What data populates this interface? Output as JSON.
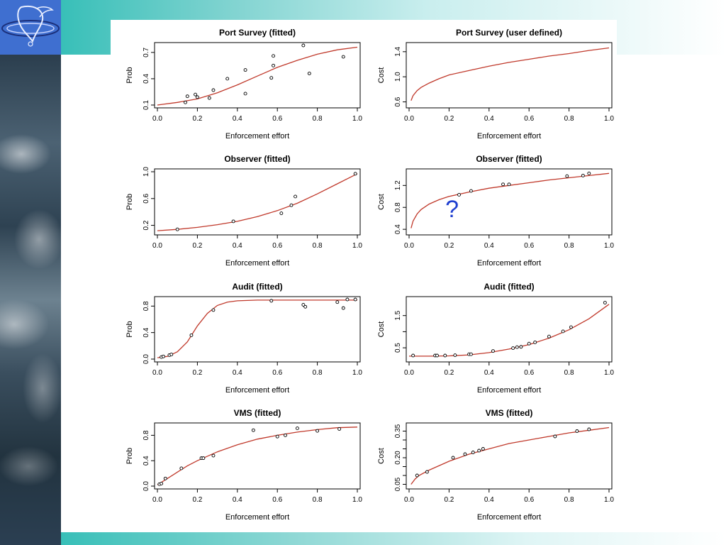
{
  "question_mark": "?",
  "chart_data": [
    {
      "type": "scatter",
      "title": "Port Survey  (fitted)",
      "xlabel": "Enforcement effort",
      "ylabel": "Prob",
      "xlim": [
        0,
        1
      ],
      "ylim": [
        0.1,
        0.78
      ],
      "xticks": [
        0.0,
        0.2,
        0.4,
        0.6,
        0.8,
        1.0
      ],
      "xtick_labels": [
        "0.0",
        "0.2",
        "0.4",
        "0.6",
        "0.8",
        "1.0"
      ],
      "yticks": [
        0.1,
        0.4,
        0.7
      ],
      "ytick_labels": [
        "0.1",
        "0.4",
        "0.7"
      ],
      "points": {
        "x": [
          0.14,
          0.15,
          0.19,
          0.2,
          0.26,
          0.28,
          0.35,
          0.44,
          0.44,
          0.57,
          0.58,
          0.58,
          0.73,
          0.76,
          0.93
        ],
        "y": [
          0.13,
          0.2,
          0.22,
          0.19,
          0.18,
          0.27,
          0.4,
          0.5,
          0.23,
          0.41,
          0.55,
          0.66,
          0.78,
          0.46,
          0.65
        ]
      },
      "curve": {
        "x": [
          0,
          0.1,
          0.2,
          0.3,
          0.4,
          0.5,
          0.6,
          0.7,
          0.8,
          0.9,
          1.0
        ],
        "y": [
          0.1,
          0.13,
          0.17,
          0.24,
          0.33,
          0.43,
          0.53,
          0.61,
          0.68,
          0.73,
          0.76
        ]
      }
    },
    {
      "type": "line",
      "title": "Port Survey  (user defined)",
      "xlabel": "Enforcement effort",
      "ylabel": "Cost",
      "xlim": [
        0,
        1
      ],
      "ylim": [
        0.55,
        1.5
      ],
      "xticks": [
        0.0,
        0.2,
        0.4,
        0.6,
        0.8,
        1.0
      ],
      "xtick_labels": [
        "0.0",
        "0.2",
        "0.4",
        "0.6",
        "0.8",
        "1.0"
      ],
      "yticks": [
        0.6,
        1.0,
        1.4
      ],
      "ytick_labels": [
        "0.6",
        "1.0",
        "1.4"
      ],
      "points": {
        "x": [],
        "y": []
      },
      "curve": {
        "x": [
          0.01,
          0.02,
          0.04,
          0.06,
          0.1,
          0.15,
          0.2,
          0.3,
          0.4,
          0.5,
          0.6,
          0.7,
          0.8,
          0.9,
          1.0
        ],
        "y": [
          0.62,
          0.7,
          0.78,
          0.83,
          0.9,
          0.97,
          1.03,
          1.1,
          1.17,
          1.23,
          1.28,
          1.33,
          1.37,
          1.42,
          1.46
        ]
      }
    },
    {
      "type": "scatter",
      "title": "Observer  (fitted)",
      "xlabel": "Enforcement effort",
      "ylabel": "Prob",
      "xlim": [
        0,
        1
      ],
      "ylim": [
        0.1,
        1.0
      ],
      "xticks": [
        0.0,
        0.2,
        0.4,
        0.6,
        0.8,
        1.0
      ],
      "xtick_labels": [
        "0.0",
        "0.2",
        "0.4",
        "0.6",
        "0.8",
        "1.0"
      ],
      "yticks": [
        0.2,
        0.6,
        1.0
      ],
      "ytick_labels": [
        "0.2",
        "0.6",
        "1.0"
      ],
      "points": {
        "x": [
          0.1,
          0.38,
          0.62,
          0.67,
          0.69,
          0.99
        ],
        "y": [
          0.14,
          0.26,
          0.38,
          0.5,
          0.63,
          0.97
        ]
      },
      "curve": {
        "x": [
          0,
          0.1,
          0.2,
          0.3,
          0.4,
          0.5,
          0.6,
          0.7,
          0.8,
          0.9,
          1.0
        ],
        "y": [
          0.12,
          0.14,
          0.17,
          0.21,
          0.26,
          0.33,
          0.42,
          0.53,
          0.67,
          0.82,
          0.97
        ]
      }
    },
    {
      "type": "scatter",
      "title": "Observer  (fitted)",
      "xlabel": "Enforcement effort",
      "ylabel": "Cost",
      "xlim": [
        0,
        1
      ],
      "ylim": [
        0.35,
        1.45
      ],
      "xticks": [
        0.0,
        0.2,
        0.4,
        0.6,
        0.8,
        1.0
      ],
      "xtick_labels": [
        "0.0",
        "0.2",
        "0.4",
        "0.6",
        "0.8",
        "1.0"
      ],
      "yticks": [
        0.4,
        0.8,
        1.2
      ],
      "ytick_labels": [
        "0.4",
        "0.8",
        "1.2"
      ],
      "points": {
        "x": [
          0.25,
          0.31,
          0.47,
          0.5,
          0.79,
          0.87,
          0.9
        ],
        "y": [
          1.03,
          1.1,
          1.22,
          1.22,
          1.37,
          1.38,
          1.42
        ]
      },
      "curve": {
        "x": [
          0.01,
          0.02,
          0.04,
          0.06,
          0.1,
          0.15,
          0.2,
          0.3,
          0.4,
          0.5,
          0.6,
          0.7,
          0.8,
          0.9,
          1.0
        ],
        "y": [
          0.42,
          0.55,
          0.68,
          0.76,
          0.86,
          0.94,
          1.0,
          1.08,
          1.15,
          1.2,
          1.25,
          1.3,
          1.34,
          1.38,
          1.42
        ]
      }
    },
    {
      "type": "scatter",
      "title": "Audit  (fitted)",
      "xlabel": "Enforcement effort",
      "ylabel": "Prob",
      "xlim": [
        0,
        1
      ],
      "ylim": [
        0,
        0.9
      ],
      "xticks": [
        0.0,
        0.2,
        0.4,
        0.6,
        0.8,
        1.0
      ],
      "xtick_labels": [
        "0.0",
        "0.2",
        "0.4",
        "0.6",
        "0.8",
        "1.0"
      ],
      "yticks": [
        0.0,
        0.4,
        0.8
      ],
      "ytick_labels": [
        "0.0",
        "0.4",
        "0.8"
      ],
      "points": {
        "x": [
          0.02,
          0.03,
          0.06,
          0.07,
          0.17,
          0.28,
          0.57,
          0.73,
          0.74,
          0.9,
          0.93,
          0.95,
          0.99
        ],
        "y": [
          0.03,
          0.04,
          0.06,
          0.07,
          0.36,
          0.74,
          0.88,
          0.82,
          0.79,
          0.86,
          0.77,
          0.9,
          0.9
        ]
      },
      "curve": {
        "x": [
          0,
          0.05,
          0.1,
          0.15,
          0.2,
          0.25,
          0.3,
          0.35,
          0.4,
          0.5,
          0.6,
          0.8,
          1.0
        ],
        "y": [
          0.02,
          0.04,
          0.11,
          0.26,
          0.5,
          0.69,
          0.81,
          0.86,
          0.88,
          0.89,
          0.89,
          0.89,
          0.89
        ]
      }
    },
    {
      "type": "scatter",
      "title": "Audit  (fitted)",
      "xlabel": "Enforcement effort",
      "ylabel": "Cost",
      "xlim": [
        0,
        1
      ],
      "ylim": [
        0.15,
        2.0
      ],
      "xticks": [
        0.0,
        0.2,
        0.4,
        0.6,
        0.8,
        1.0
      ],
      "xtick_labels": [
        "0.0",
        "0.2",
        "0.4",
        "0.6",
        "0.8",
        "1.0"
      ],
      "yticks": [
        0.5,
        1.0,
        1.5
      ],
      "ytick_labels": [
        "0.5",
        "",
        "1.5"
      ],
      "points": {
        "x": [
          0.02,
          0.13,
          0.14,
          0.18,
          0.23,
          0.3,
          0.31,
          0.42,
          0.52,
          0.54,
          0.56,
          0.6,
          0.63,
          0.7,
          0.77,
          0.81,
          0.98
        ],
        "y": [
          0.26,
          0.26,
          0.26,
          0.26,
          0.27,
          0.3,
          0.3,
          0.4,
          0.49,
          0.52,
          0.53,
          0.63,
          0.67,
          0.85,
          1.01,
          1.14,
          1.9
        ]
      },
      "curve": {
        "x": [
          0,
          0.1,
          0.2,
          0.3,
          0.4,
          0.5,
          0.6,
          0.7,
          0.8,
          0.9,
          1.0
        ],
        "y": [
          0.24,
          0.24,
          0.25,
          0.28,
          0.35,
          0.46,
          0.6,
          0.8,
          1.06,
          1.4,
          1.85
        ]
      }
    },
    {
      "type": "scatter",
      "title": "VMS  (fitted)",
      "xlabel": "Enforcement effort",
      "ylabel": "Prob",
      "xlim": [
        0,
        1
      ],
      "ylim": [
        0,
        0.95
      ],
      "xticks": [
        0.0,
        0.2,
        0.4,
        0.6,
        0.8,
        1.0
      ],
      "xtick_labels": [
        "0.0",
        "0.2",
        "0.4",
        "0.6",
        "0.8",
        "1.0"
      ],
      "yticks": [
        0.0,
        0.4,
        0.8
      ],
      "ytick_labels": [
        "0.0",
        "0.4",
        "0.8"
      ],
      "points": {
        "x": [
          0.01,
          0.02,
          0.04,
          0.12,
          0.22,
          0.23,
          0.28,
          0.48,
          0.6,
          0.64,
          0.7,
          0.8,
          0.91
        ],
        "y": [
          0.03,
          0.04,
          0.12,
          0.28,
          0.44,
          0.44,
          0.48,
          0.88,
          0.78,
          0.8,
          0.91,
          0.87,
          0.9
        ]
      },
      "curve": {
        "x": [
          0,
          0.05,
          0.1,
          0.15,
          0.2,
          0.3,
          0.4,
          0.5,
          0.6,
          0.7,
          0.8,
          0.9,
          1.0
        ],
        "y": [
          0.02,
          0.12,
          0.22,
          0.32,
          0.4,
          0.54,
          0.65,
          0.74,
          0.8,
          0.85,
          0.89,
          0.92,
          0.93
        ]
      }
    },
    {
      "type": "scatter",
      "title": "VMS  (fitted)",
      "xlabel": "Enforcement effort",
      "ylabel": "Cost",
      "xlim": [
        0,
        1
      ],
      "ylim": [
        0.04,
        0.38
      ],
      "xticks": [
        0.0,
        0.2,
        0.4,
        0.6,
        0.8,
        1.0
      ],
      "xtick_labels": [
        "0.0",
        "0.2",
        "0.4",
        "0.6",
        "0.8",
        "1.0"
      ],
      "yticks": [
        0.05,
        0.1,
        0.15,
        0.2,
        0.25,
        0.3,
        0.35
      ],
      "ytick_labels": [
        "0.05",
        "",
        "",
        "0.20",
        "",
        "",
        "0.35"
      ],
      "points": {
        "x": [
          0.04,
          0.09,
          0.22,
          0.28,
          0.32,
          0.35,
          0.37,
          0.73,
          0.84,
          0.9
        ],
        "y": [
          0.1,
          0.12,
          0.2,
          0.22,
          0.23,
          0.24,
          0.25,
          0.32,
          0.35,
          0.36
        ]
      },
      "curve": {
        "x": [
          0.01,
          0.03,
          0.05,
          0.1,
          0.2,
          0.3,
          0.4,
          0.5,
          0.6,
          0.7,
          0.8,
          0.9,
          1.0
        ],
        "y": [
          0.05,
          0.08,
          0.1,
          0.13,
          0.18,
          0.22,
          0.25,
          0.28,
          0.3,
          0.32,
          0.34,
          0.355,
          0.37
        ]
      }
    }
  ]
}
